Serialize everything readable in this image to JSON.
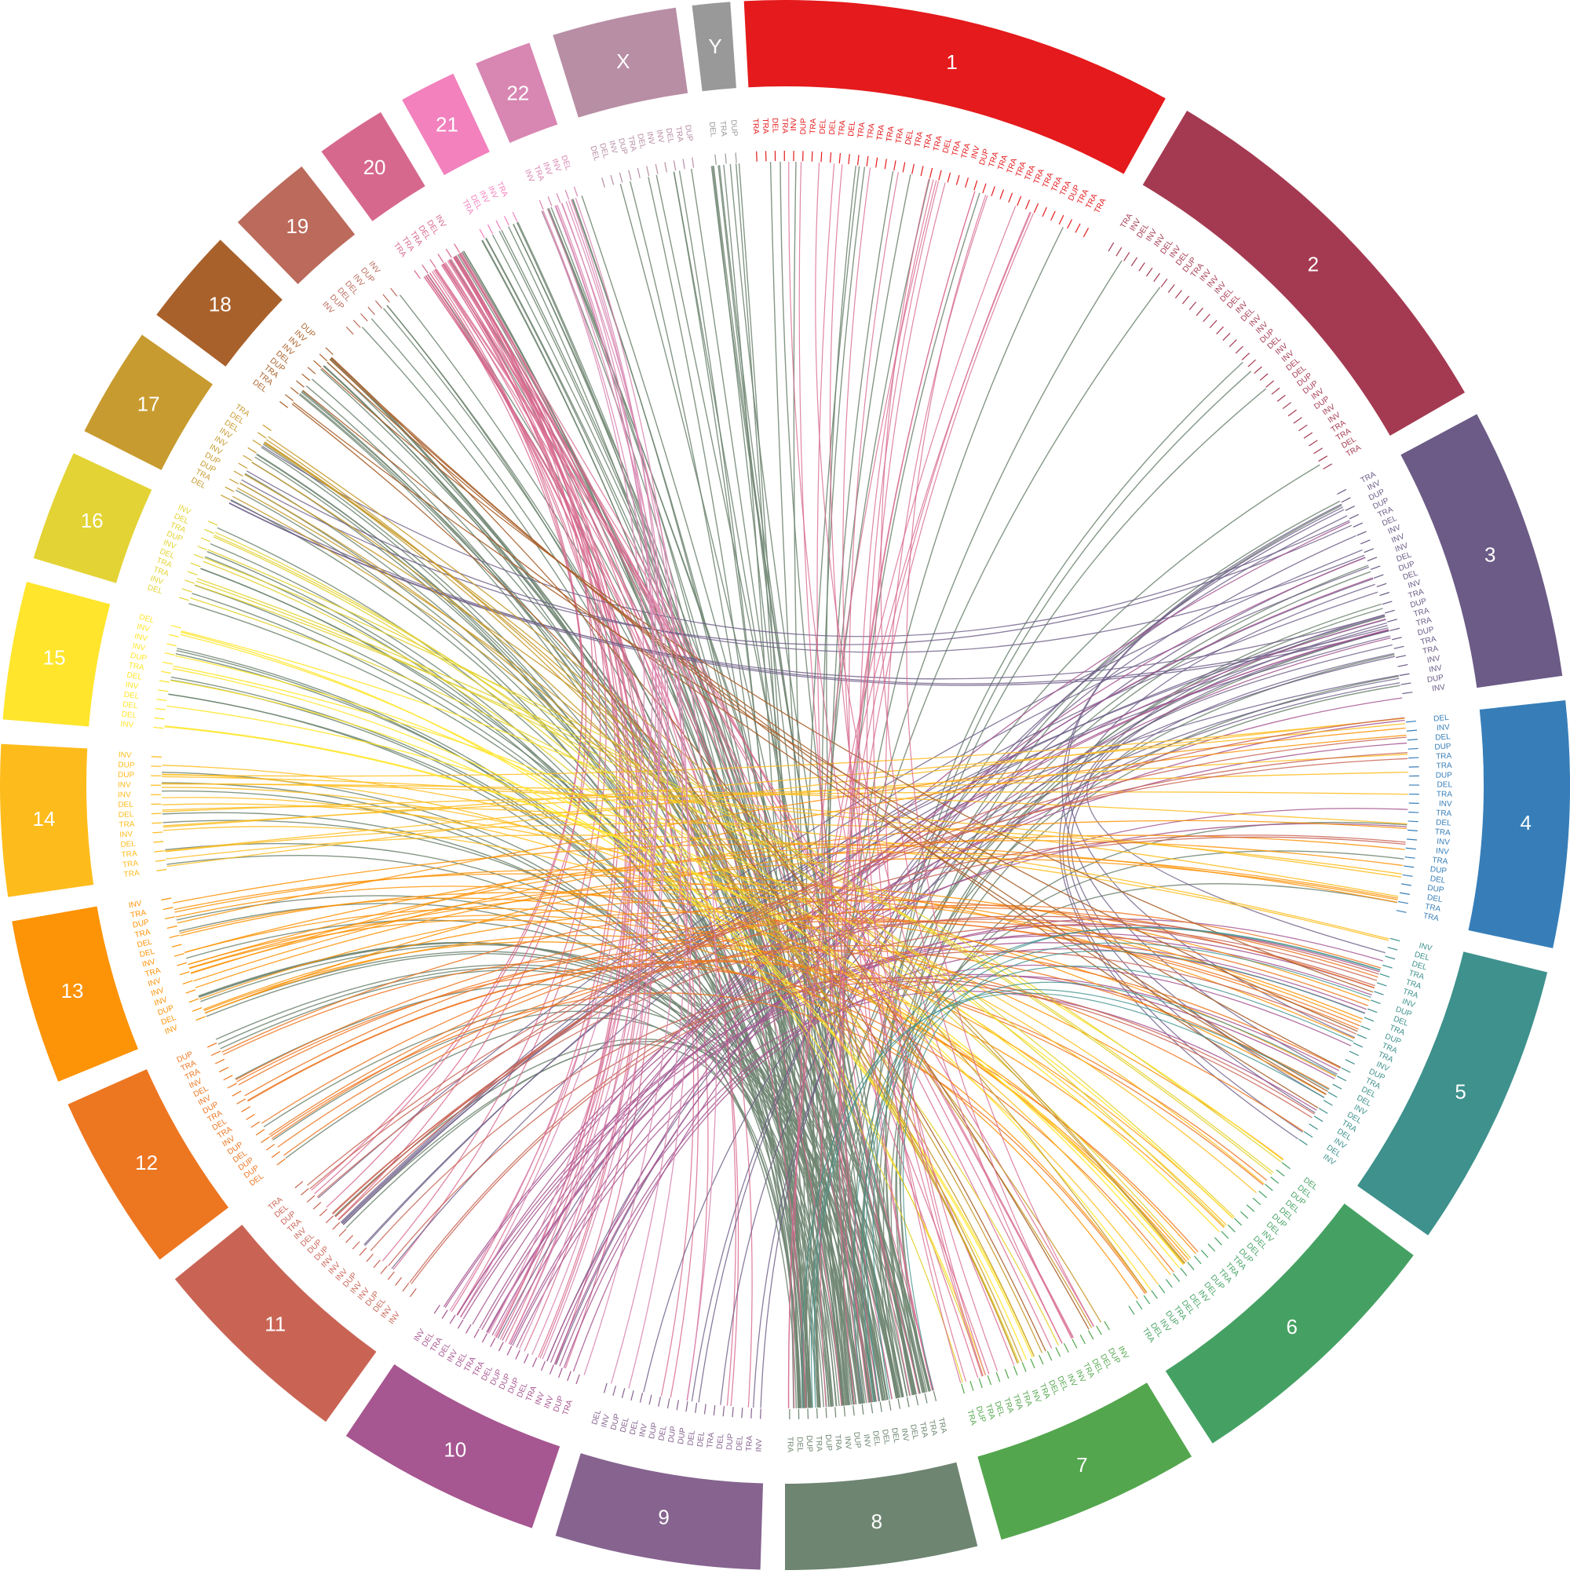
{
  "chart_data": {
    "type": "chord",
    "chromosomes": [
      {
        "name": "1",
        "color": "#e41a1c",
        "start_deg": 357,
        "end_deg": 29
      },
      {
        "name": "2",
        "color": "#a43a51",
        "start_deg": 30.8,
        "end_deg": 60
      },
      {
        "name": "3",
        "color": "#6b5b86",
        "start_deg": 61.8,
        "end_deg": 82
      },
      {
        "name": "4",
        "color": "#377eb8",
        "start_deg": 83.8,
        "end_deg": 102
      },
      {
        "name": "5",
        "color": "#3e918c",
        "start_deg": 103.8,
        "end_deg": 125
      },
      {
        "name": "6",
        "color": "#45a163",
        "start_deg": 126.8,
        "end_deg": 147
      },
      {
        "name": "7",
        "color": "#53a64d",
        "start_deg": 148.8,
        "end_deg": 164
      },
      {
        "name": "8",
        "color": "#6e8571",
        "start_deg": 165.8,
        "end_deg": 180
      },
      {
        "name": "9",
        "color": "#86648f",
        "start_deg": 181.8,
        "end_deg": 197
      },
      {
        "name": "10",
        "color": "#a65690",
        "start_deg": 198.8,
        "end_deg": 214
      },
      {
        "name": "11",
        "color": "#c96455",
        "start_deg": 215.8,
        "end_deg": 231
      },
      {
        "name": "12",
        "color": "#ed7621",
        "start_deg": 232.8,
        "end_deg": 246
      },
      {
        "name": "13",
        "color": "#fd9307",
        "start_deg": 247.8,
        "end_deg": 260
      },
      {
        "name": "14",
        "color": "#febc1c",
        "start_deg": 261.8,
        "end_deg": 273
      },
      {
        "name": "15",
        "color": "#ffe52c",
        "start_deg": 274.8,
        "end_deg": 285
      },
      {
        "name": "16",
        "color": "#e3d334",
        "start_deg": 286.8,
        "end_deg": 295
      },
      {
        "name": "17",
        "color": "#c79b2f",
        "start_deg": 296.8,
        "end_deg": 305
      },
      {
        "name": "18",
        "color": "#a9612b",
        "start_deg": 306.8,
        "end_deg": 314
      },
      {
        "name": "19",
        "color": "#bb6a5b",
        "start_deg": 315.8,
        "end_deg": 322
      },
      {
        "name": "20",
        "color": "#d7688d",
        "start_deg": 323.8,
        "end_deg": 329
      },
      {
        "name": "21",
        "color": "#f281be",
        "start_deg": 330.8,
        "end_deg": 335
      },
      {
        "name": "22",
        "color": "#d886b2",
        "start_deg": 336.8,
        "end_deg": 341
      },
      {
        "name": "X",
        "color": "#b88ea5",
        "start_deg": 342.8,
        "end_deg": 352
      },
      {
        "name": "Y",
        "color": "#999999",
        "start_deg": 353.2,
        "end_deg": 356
      }
    ],
    "sv_labels": [
      "TRA",
      "TRA",
      "DEL",
      "TRA",
      "INV",
      "DUP",
      "TRA",
      "DEL",
      "DEL",
      "TRA",
      "DEL",
      "TRA",
      "TRA",
      "TRA",
      "TRA",
      "TRA",
      "DEL",
      "TRA",
      "TRA",
      "TRA",
      "DEL",
      "TRA",
      "TRA",
      "INV",
      "DUP",
      "TRA",
      "TRA",
      "TRA",
      "TRA",
      "TRA",
      "TRA",
      "TRA",
      "TRA",
      "TRA",
      "DUP",
      "TRA",
      "TRA",
      "TRA",
      "TRA",
      "INV",
      "DEL",
      "INV",
      "INV",
      "DEL",
      "INV",
      "DEL",
      "DUP",
      "TRA",
      "INV",
      "INV",
      "INV",
      "DEL",
      "DEL",
      "INV",
      "DEL",
      "INV",
      "INV",
      "DUP",
      "DEL",
      "INV",
      "INV",
      "DEL",
      "DEL",
      "DUP",
      "DUP",
      "INV",
      "DUP",
      "INV",
      "INV",
      "TRA",
      "TRA",
      "DEL",
      "TRA",
      "TRA",
      "INV",
      "DUP",
      "DUP",
      "TRA",
      "DEL",
      "INV",
      "INV",
      "INV",
      "DEL",
      "DUP",
      "DEL",
      "INV",
      "TRA",
      "DUP",
      "TRA",
      "TRA",
      "DUP",
      "TRA",
      "TRA",
      "INV",
      "INV",
      "DUP",
      "INV",
      "DEL",
      "INV",
      "DEL",
      "DUP",
      "TRA",
      "TRA",
      "DUP",
      "DEL",
      "TRA",
      "INV",
      "TRA",
      "DEL",
      "TRA",
      "INV",
      "INV",
      "TRA",
      "DUP",
      "DEL",
      "DUP",
      "DEL",
      "TRA",
      "TRA",
      "INV",
      "DEL",
      "DEL",
      "TRA",
      "TRA",
      "TRA",
      "INV",
      "DUP",
      "DEL",
      "TRA",
      "DUP",
      "TRA",
      "TRA",
      "INV",
      "DUP",
      "TRA",
      "DEL",
      "DEL",
      "INV",
      "DEL",
      "TRA",
      "DEL",
      "INV",
      "DEL",
      "INV",
      "DEL",
      "DEL",
      "DUP",
      "DEL",
      "DEL",
      "DUP",
      "DEL",
      "INV",
      "DEL",
      "DEL",
      "DUP",
      "TRA",
      "TRA",
      "TRA",
      "DUP",
      "DEL",
      "INV",
      "DEL",
      "DEL",
      "TRA",
      "DUP",
      "INV",
      "DEL",
      "TRA",
      "INV",
      "DUP",
      "DEL",
      "DEL",
      "TRA",
      "INV",
      "INV",
      "DEL",
      "DEL",
      "TRA",
      "INV",
      "TRA",
      "TRA",
      "TRA",
      "DEL",
      "TRA",
      "DUP",
      "TRA",
      "TRA",
      "TRA",
      "TRA",
      "DEL",
      "INV",
      "DEL",
      "DEL",
      "DEL",
      "INV",
      "DUP",
      "INV",
      "TRA",
      "DUP",
      "TRA",
      "DUP",
      "DEL",
      "TRA",
      "INV",
      "TRA",
      "DEL",
      "DUP",
      "DEL",
      "TRA",
      "DEL",
      "DEL",
      "DUP",
      "DUP",
      "DEL",
      "DUP",
      "INV",
      "DEL",
      "DEL",
      "DUP",
      "INV",
      "DEL",
      "TRA",
      "DUP",
      "INV",
      "INV",
      "TRA",
      "DEL",
      "DUP",
      "DUP",
      "DUP",
      "DEL",
      "TRA",
      "TRA",
      "DEL",
      "INV",
      "DEL",
      "TRA",
      "DEL",
      "INV",
      "INV",
      "INV",
      "DEL",
      "DUP",
      "INV",
      "INV",
      "DUP",
      "INV",
      "INV",
      "INV",
      "DUP",
      "DUP",
      "DEL",
      "INV",
      "TRA",
      "DUP",
      "DEL",
      "TRA",
      "DEL",
      "DUP",
      "DUP",
      "DEL",
      "DUP",
      "INV",
      "TRA",
      "DEL",
      "TRA",
      "DUP",
      "INV",
      "DEL",
      "INV",
      "TRA",
      "TRA",
      "DUP",
      "INV",
      "DEL",
      "DUP",
      "INV",
      "INV",
      "INV",
      "TRA",
      "INV",
      "DEL",
      "DEL",
      "TRA",
      "DUP",
      "TRA",
      "INV",
      "TRA",
      "TRA",
      "TRA",
      "DEL",
      "INV",
      "TRA",
      "DEL",
      "DEL",
      "INV",
      "INV",
      "DUP",
      "DUP",
      "INV",
      "INV",
      "DEL",
      "DEL",
      "DEL",
      "INV",
      "DEL",
      "TRA",
      "DUP",
      "INV",
      "INV",
      "INV",
      "DEL",
      "DEL",
      "INV",
      "TRA",
      "TRA",
      "DEL",
      "INV",
      "DUP",
      "TRA",
      "DEL",
      "INV",
      "DEL",
      "TRA",
      "DUP",
      "DUP",
      "INV",
      "INV",
      "INV",
      "DEL",
      "DEL",
      "TRA",
      "DEL",
      "TRA",
      "TRA",
      "DUP",
      "DEL",
      "INV",
      "INV",
      "INV",
      "DUP",
      "INV",
      "DUP",
      "DEL",
      "DEL",
      "INV",
      "DUP",
      "INV",
      "TRA",
      "TRA",
      "TRA",
      "DEL",
      "DEL",
      "INV",
      "TRA",
      "DEL",
      "INV",
      "INV",
      "TRA",
      "INV",
      "TRA",
      "INV",
      "INV",
      "DEL",
      "DEL",
      "DEL",
      "INV",
      "DUP",
      "TRA",
      "DEL",
      "INV",
      "INV",
      "DEL",
      "TRA",
      "DUP",
      "DEL",
      "TRA",
      "DUP"
    ]
  }
}
